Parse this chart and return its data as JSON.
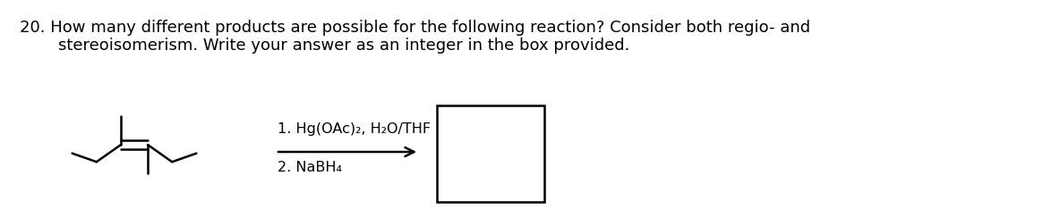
{
  "title_line1": "20. How many different products are possible for the following reaction? Consider both regio- and",
  "title_line2": "    stereoisomerism. Write your answer as an integer in the box provided.",
  "reagent_line1": "1. Hg(OAc)₂, H₂O/THF",
  "reagent_line2": "2. NaBH₄",
  "bg_color": "#ffffff",
  "text_color": "#000000",
  "fontsize_title": 13.0,
  "fontsize_reagent": 11.5
}
